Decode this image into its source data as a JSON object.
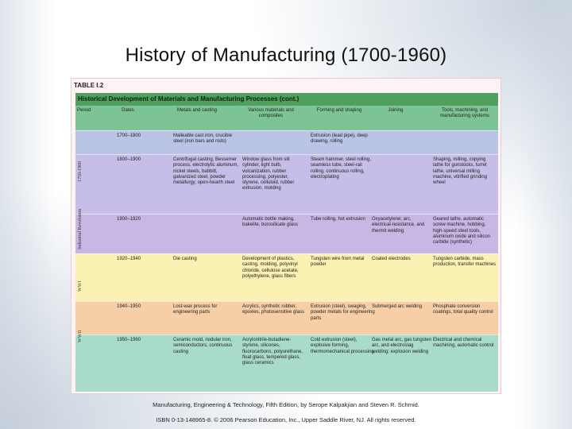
{
  "slide": {
    "title": "History of Manufacturing (1700-1960)",
    "credit_line1": "Manufacturing, Engineering & Technology, Fifth Edition, by Serope Kalpakjian and Steven R. Schmid.",
    "credit_line2": "ISBN 0-13-148965-8. © 2006 Pearson Education, Inc., Upper Saddle River, NJ. All rights reserved."
  },
  "table": {
    "label": "TABLE I.2",
    "heading": "Historical Development of Materials and Manufacturing Processes (cont.)",
    "columns": [
      "Period",
      "Dates",
      "Metals and casting",
      "Various materials and composites",
      "Forming and shaping",
      "Joining",
      "Tools, machining, and manufacturing systems"
    ],
    "periods": [
      "1750-1900",
      "Industrial Revolution",
      "WWI",
      "WWII"
    ],
    "rows": [
      {
        "dates": "1700–1800",
        "metals": "Malleable cast iron, crucible steel (iron bars and rods)",
        "materials": "",
        "forming": "Extrusion (lead pipe), deep drawing, rolling",
        "joining": "",
        "tools": "",
        "color": "#b9c4e6"
      },
      {
        "dates": "1800–1900",
        "metals": "Centrifugal casting, Bessemer process, electrolytic aluminum, nickel steels, babbitt, galvanized steel, powder metallurgy, open-hearth steel",
        "materials": "Window glass from slit cylinder, light bulb, vulcanization, rubber processing, polyester, styrene, celluloid, rubber extrusion, molding",
        "forming": "Steam hammer, steel rolling, seamless tube, steel-rail rolling, continuous rolling, electroplating",
        "joining": "",
        "tools": "Shaping, milling, copying lathe for gunstocks, turret lathe, universal milling machine, vitrified grinding wheel",
        "color": "#c6bde8"
      },
      {
        "dates": "1900–1920",
        "metals": "",
        "materials": "Automatic bottle making, bakelite, borosilicate glass",
        "forming": "Tube rolling, hot extrusion",
        "joining": "Oxyacetylene; arc, electrical-resistance, and thermit welding",
        "tools": "Geared lathe, automatic screw machine, hobbing, high-speed steel tools, aluminum oxide and silicon carbide (synthetic)",
        "color": "#c8b7e5"
      },
      {
        "dates": "1920–1940",
        "metals": "Die casting",
        "materials": "Development of plastics, casting, molding, polyvinyl chloride, cellulose acetate, polyethylene, glass fibers",
        "forming": "Tungsten wire from metal powder",
        "joining": "Coated electrodes",
        "tools": "Tungsten carbide, mass production, transfer machines",
        "color": "#fbf1b2"
      },
      {
        "dates": "1940–1950",
        "metals": "Lost-wax process for engineering parts",
        "materials": "Acrylics, synthetic rubber, epoxies, photosensitive glass",
        "forming": "Extrusion (steel), swaging, powder metals for engineering parts",
        "joining": "Submerged arc welding",
        "tools": "Phosphate conversion coatings, total quality control",
        "color": "#f7cfa6"
      },
      {
        "dates": "1950–1960",
        "metals": "Ceramic mold, nodular iron, semiconductors, continuous casting",
        "materials": "Acrylonitrile-butadiene-styrene, silicones, fluorocarbons, polyurethane, float glass, tempered glass, glass ceramics",
        "forming": "Cold extrusion (steel), explosive forming, thermomechanical processing",
        "joining": "Gas metal arc, gas tungsten arc, and electroslag welding; explosion welding",
        "tools": "Electrical and chemical machining, automatic control",
        "color": "#a9dcc8"
      }
    ]
  }
}
